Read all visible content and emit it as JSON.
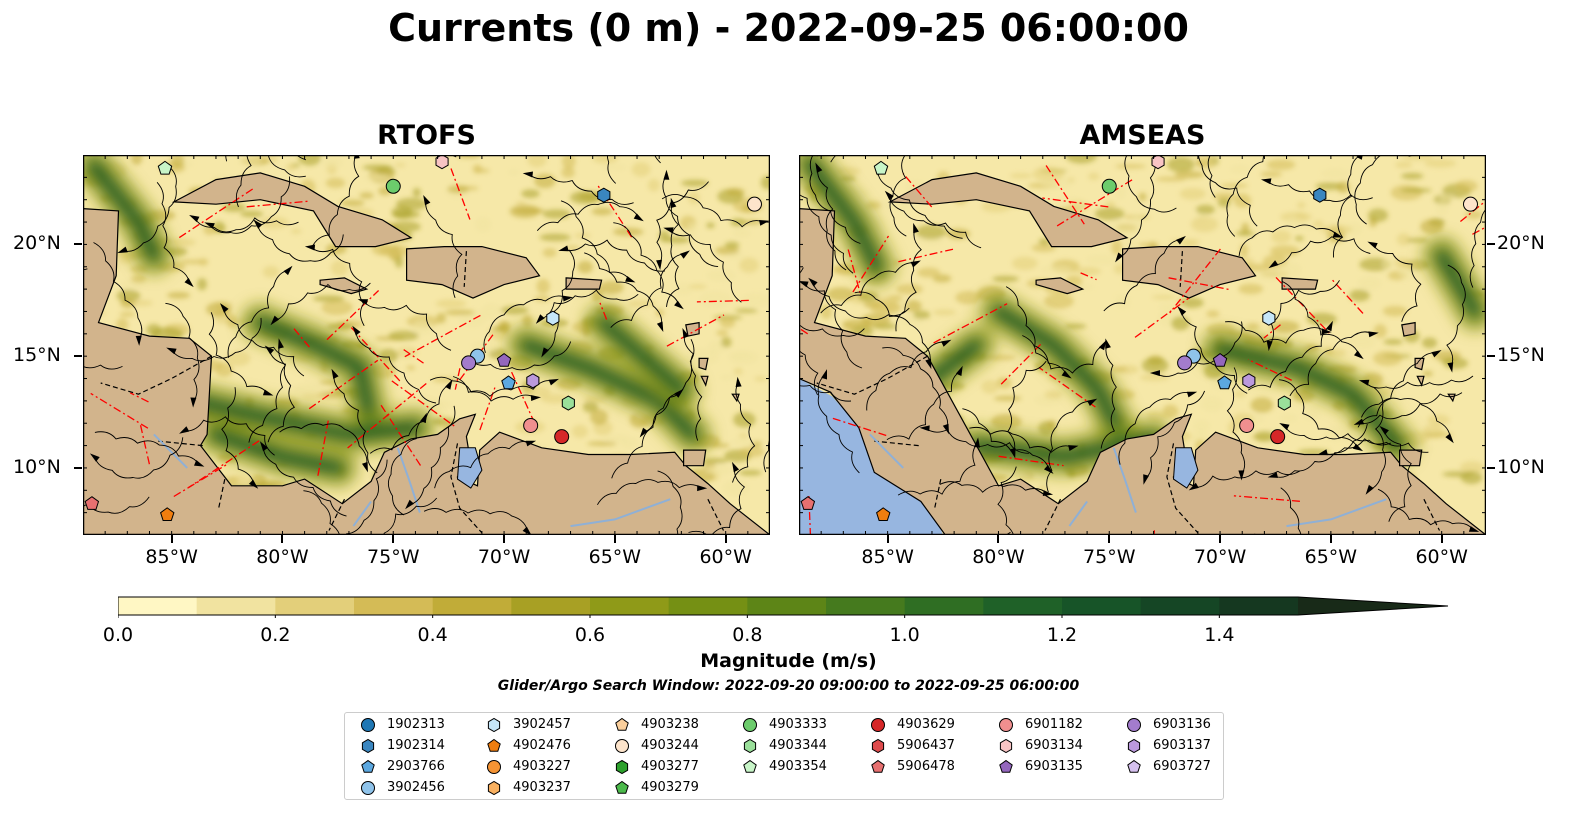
{
  "title": "Currents (0 m) - 2022-09-25 06:00:00",
  "panels": [
    {
      "title": "RTOFS"
    },
    {
      "title": "AMSEAS"
    }
  ],
  "lon_ticks": [
    "85°W",
    "80°W",
    "75°W",
    "70°W",
    "65°W",
    "60°W"
  ],
  "lat_ticks": [
    "20°N",
    "15°N",
    "10°N"
  ],
  "extent": {
    "lon": [
      -89,
      -58
    ],
    "lat": [
      7,
      24
    ]
  },
  "colorbar": {
    "label": "Magnitude (m/s)",
    "ticks": [
      "0.0",
      "0.2",
      "0.4",
      "0.6",
      "0.8",
      "1.0",
      "1.2",
      "1.4"
    ],
    "range": [
      0,
      1.5
    ],
    "extend": "max",
    "colors": [
      "#fff7c4",
      "#f1e3a0",
      "#e3cf7a",
      "#d4bb56",
      "#c1ac38",
      "#a8a024",
      "#8f9a18",
      "#759014",
      "#5d8517",
      "#457a1e",
      "#2f6e23",
      "#1f6128",
      "#175428",
      "#154625",
      "#153820",
      "#182a18"
    ]
  },
  "search_window": "Glider/Argo Search Window: 2022-09-20 09:00:00 to 2022-09-25 06:00:00",
  "land_color": "#d2b48c",
  "ocean_color": "#f6e8a8",
  "legend": {
    "columns": [
      [
        {
          "id": "1902313",
          "marker": "circle",
          "color": "#1f77b4"
        },
        {
          "id": "1902314",
          "marker": "hexagon",
          "color": "#3a86c0"
        },
        {
          "id": "2903766",
          "marker": "pentagon",
          "color": "#5ca8e0"
        },
        {
          "id": "3902456",
          "marker": "circle",
          "color": "#8fc3ea"
        }
      ],
      [
        {
          "id": "3902457",
          "marker": "hexagon",
          "color": "#c6e6f8"
        },
        {
          "id": "4902476",
          "marker": "pentagon",
          "color": "#f07e0f"
        },
        {
          "id": "4903227",
          "marker": "circle",
          "color": "#f59434"
        },
        {
          "id": "4903237",
          "marker": "hexagon",
          "color": "#f8b060"
        }
      ],
      [
        {
          "id": "4903238",
          "marker": "pentagon",
          "color": "#fbcf9c"
        },
        {
          "id": "4903244",
          "marker": "circle",
          "color": "#fde4cb"
        },
        {
          "id": "4903277",
          "marker": "hexagon",
          "color": "#2ca02c"
        },
        {
          "id": "4903279",
          "marker": "pentagon",
          "color": "#4cba4c"
        }
      ],
      [
        {
          "id": "4903333",
          "marker": "circle",
          "color": "#6ccc6c"
        },
        {
          "id": "4903344",
          "marker": "hexagon",
          "color": "#9adf9a"
        },
        {
          "id": "4903354",
          "marker": "pentagon",
          "color": "#c8f5c8"
        }
      ],
      [
        {
          "id": "4903629",
          "marker": "circle",
          "color": "#d62728"
        },
        {
          "id": "5906437",
          "marker": "hexagon",
          "color": "#de4a4c"
        },
        {
          "id": "5906478",
          "marker": "pentagon",
          "color": "#e77070"
        }
      ],
      [
        {
          "id": "6901182",
          "marker": "circle",
          "color": "#f08f8f"
        },
        {
          "id": "6903134",
          "marker": "hexagon",
          "color": "#f8c4c4"
        },
        {
          "id": "6903135",
          "marker": "pentagon",
          "color": "#9467bd"
        }
      ],
      [
        {
          "id": "6903136",
          "marker": "circle",
          "color": "#a37ccc"
        },
        {
          "id": "6903137",
          "marker": "hexagon",
          "color": "#bb99dd"
        },
        {
          "id": "6903727",
          "marker": "pentagon",
          "color": "#d5c0ee"
        }
      ]
    ]
  },
  "floats": [
    {
      "id": "4903354",
      "lon": -85.3,
      "lat": 23.4
    },
    {
      "id": "6903134",
      "lon": -72.8,
      "lat": 23.7
    },
    {
      "id": "4903333",
      "lon": -75.0,
      "lat": 22.6
    },
    {
      "id": "1902314",
      "lon": -65.5,
      "lat": 22.2
    },
    {
      "id": "4903244",
      "lon": -58.7,
      "lat": 21.8
    },
    {
      "id": "3902457",
      "lon": -67.8,
      "lat": 16.7
    },
    {
      "id": "3902456",
      "lon": -71.2,
      "lat": 15.0
    },
    {
      "id": "6903136",
      "lon": -71.6,
      "lat": 14.7
    },
    {
      "id": "6903135",
      "lon": -70.0,
      "lat": 14.8
    },
    {
      "id": "2903766",
      "lon": -69.8,
      "lat": 13.8
    },
    {
      "id": "6903137",
      "lon": -68.7,
      "lat": 13.9
    },
    {
      "id": "4903344",
      "lon": -67.1,
      "lat": 12.9
    },
    {
      "id": "6901182",
      "lon": -68.8,
      "lat": 11.9
    },
    {
      "id": "4903629",
      "lon": -67.4,
      "lat": 11.4
    },
    {
      "id": "5906478",
      "lon": -88.6,
      "lat": 8.4
    },
    {
      "id": "4902476",
      "lon": -85.2,
      "lat": 7.9
    }
  ]
}
